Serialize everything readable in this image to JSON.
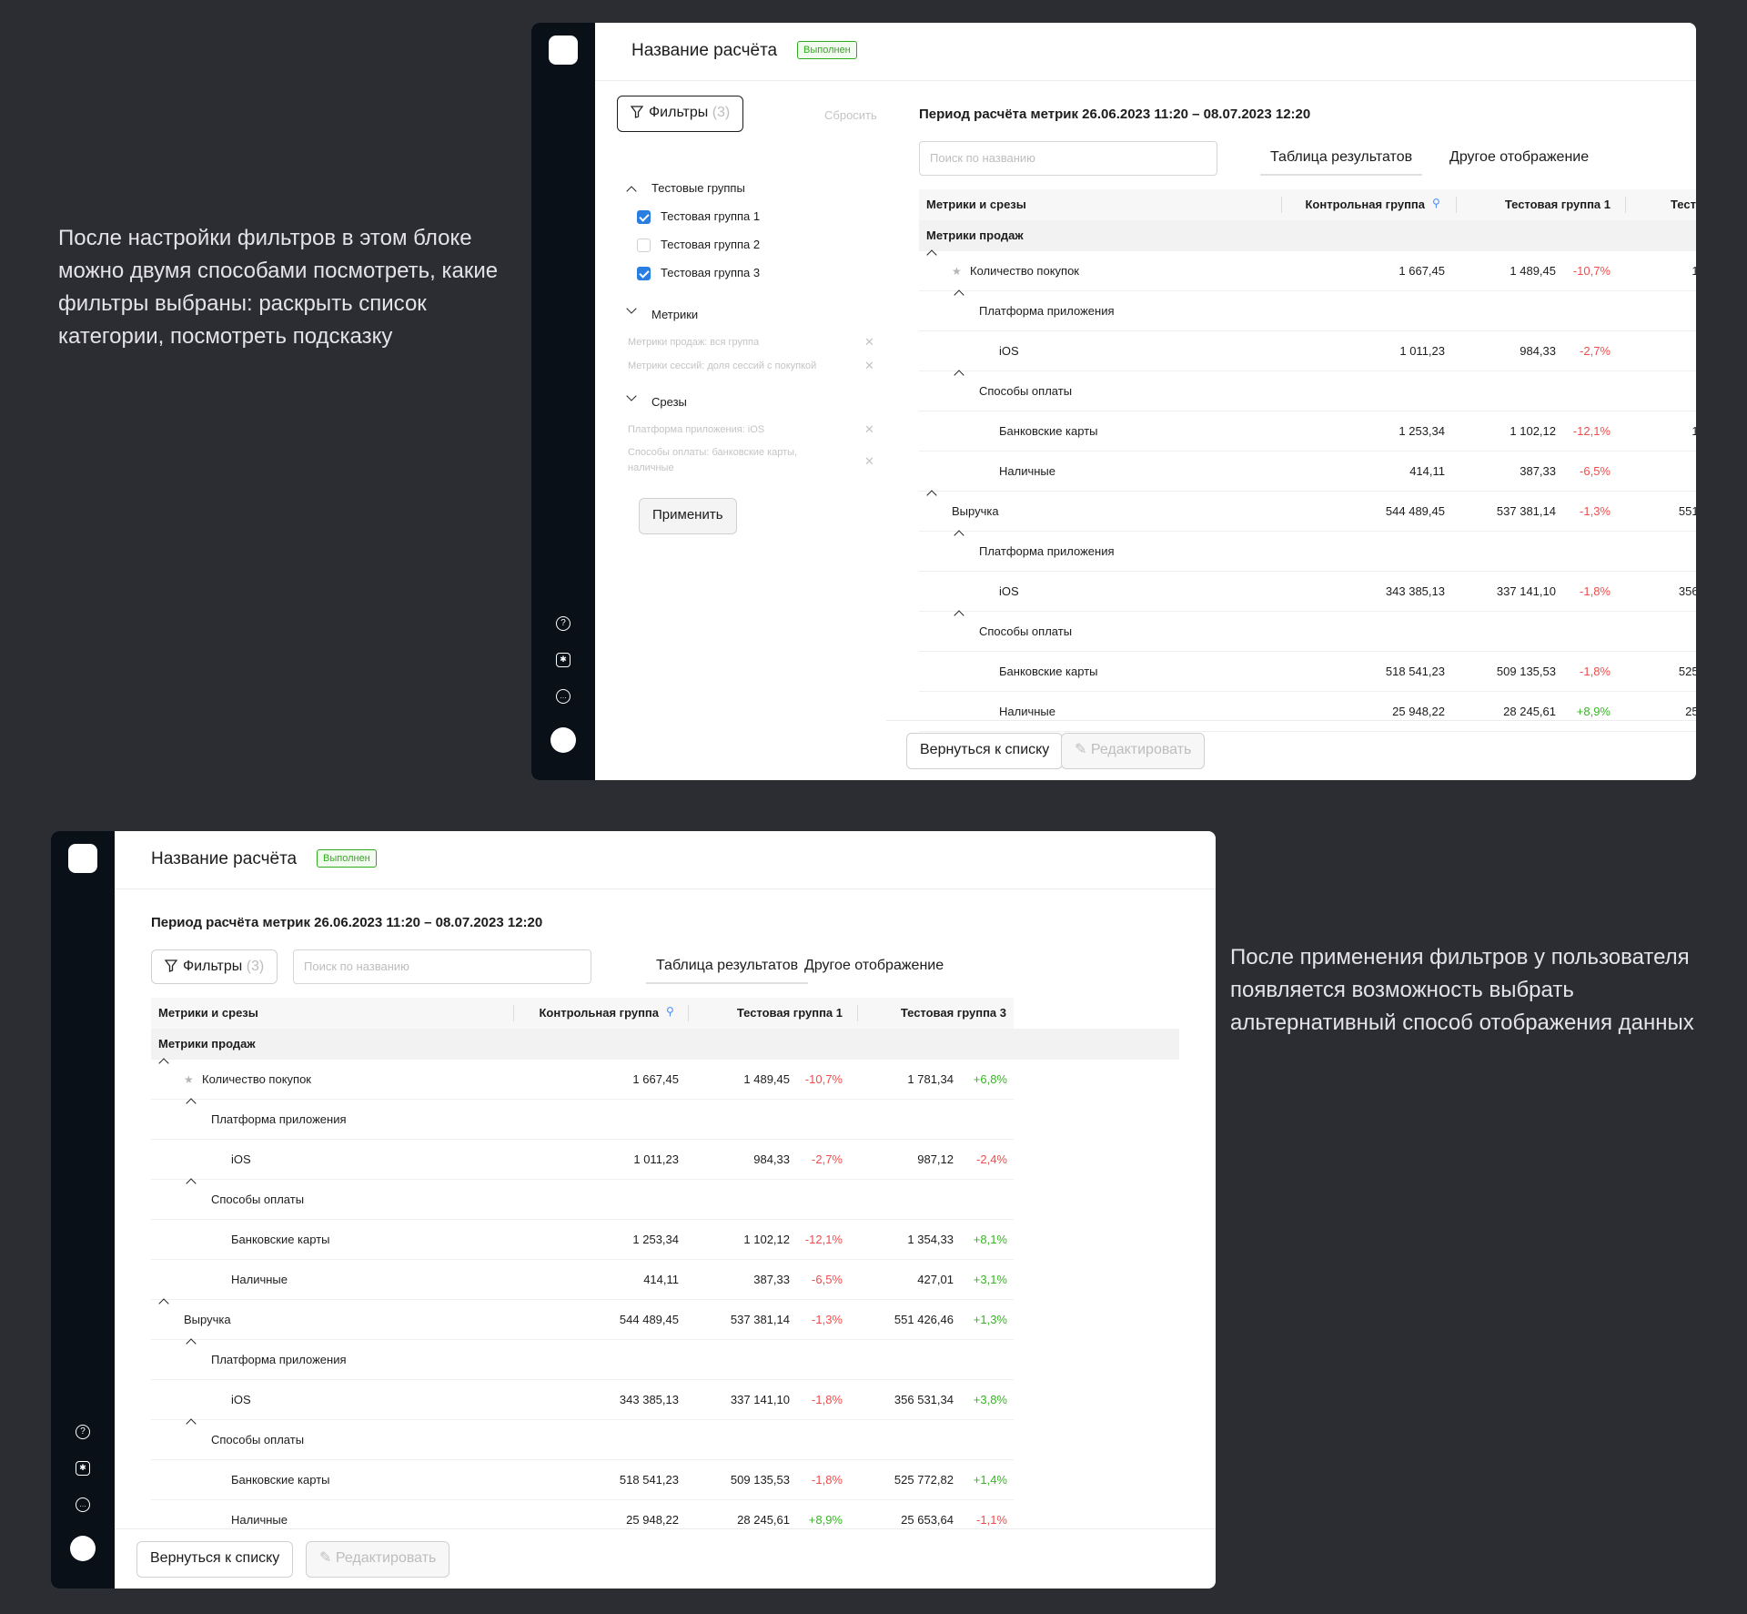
{
  "captions": {
    "top": "После настройки фильтров в этом блоке можно двумя способами посмотреть, какие фильтры выбраны: раскрыть список категории, посмотреть подсказку",
    "bottom": "После применения фильтров у пользователя появляется возможность выбрать альтернативный способ отображения данных"
  },
  "window": {
    "title": "Название расчёта",
    "status": "Выполнен",
    "period": "Период расчёта метрик 26.06.2023 11:20 – 08.07.2023 12:20",
    "filters_label": "Фильтры",
    "filters_count": "(3)",
    "reset_label": "Сбросить",
    "search_placeholder": "Поиск по названию",
    "tab_results": "Таблица результатов",
    "tab_other": "Другое отображение",
    "back_button": "Вернуться к списку",
    "edit_button": "Редактировать"
  },
  "filter_panel": {
    "groups_title": "Тестовые группы",
    "groups": [
      {
        "label": "Тестовая группа 1",
        "checked": true
      },
      {
        "label": "Тестовая группа 2",
        "checked": false
      },
      {
        "label": "Тестовая группа 3",
        "checked": true
      }
    ],
    "metrics_title": "Метрики",
    "metrics_selected": [
      "Метрики продаж: вся группа",
      "Метрики сессий: доля сессий с покупкой"
    ],
    "slices_title": "Срезы",
    "slices_selected": [
      "Платформа приложения: iOS",
      "Способы оплаты: банковские карты, наличные"
    ],
    "apply_button": "Применить"
  },
  "table": {
    "headers": [
      "Метрики и срезы",
      "Контрольная группа",
      "Тестовая группа 1",
      "Тестовая группа 3"
    ],
    "section": "Метрики продаж",
    "rows": [
      {
        "label": "Количество покупок",
        "level": 0,
        "chev": true,
        "star": true,
        "c": "1 667,45",
        "g1": "1 489,45",
        "d1": "-10,7%",
        "g3": "1 781,34",
        "d3": "+6,8%"
      },
      {
        "label": "Платформа приложения",
        "level": 1,
        "chev": true
      },
      {
        "label": "iOS",
        "level": 2,
        "c": "1 011,23",
        "g1": "984,33",
        "d1": "-2,7%",
        "g3": "987,12",
        "d3": "-2,4%"
      },
      {
        "label": "Способы оплаты",
        "level": 1,
        "chev": true
      },
      {
        "label": "Банковские карты",
        "level": 2,
        "c": "1 253,34",
        "g1": "1 102,12",
        "d1": "-12,1%",
        "g3": "1 354,33",
        "d3": "+8,1%"
      },
      {
        "label": "Наличные",
        "level": 2,
        "c": "414,11",
        "g1": "387,33",
        "d1": "-6,5%",
        "g3": "427,01",
        "d3": "+3,1%"
      },
      {
        "label": "Выручка",
        "level": 0,
        "chev": true,
        "c": "544 489,45",
        "g1": "537 381,14",
        "d1": "-1,3%",
        "g3": "551 426,46",
        "d3": "+1,3%"
      },
      {
        "label": "Платформа приложения",
        "level": 1,
        "chev": true
      },
      {
        "label": "iOS",
        "level": 2,
        "c": "343 385,13",
        "g1": "337 141,10",
        "d1": "-1,8%",
        "g3": "356 531,34",
        "d3": "+3,8%"
      },
      {
        "label": "Способы оплаты",
        "level": 1,
        "chev": true
      },
      {
        "label": "Банковские карты",
        "level": 2,
        "c": "518 541,23",
        "g1": "509 135,53",
        "d1": "-1,8%",
        "g3": "525 772,82",
        "d3": "+1,4%"
      },
      {
        "label": "Наличные",
        "level": 2,
        "c": "25 948,22",
        "g1": "28 245,61",
        "d1": "+8,9%",
        "g3": "25 653,64",
        "d3": "-1,1%"
      }
    ]
  },
  "icons": [
    "logo",
    "help-icon",
    "bug-icon",
    "chat-icon",
    "avatar",
    "filter-icon",
    "pin-icon",
    "star-icon",
    "pencil-icon",
    "close-icon",
    "checkbox-icon"
  ]
}
